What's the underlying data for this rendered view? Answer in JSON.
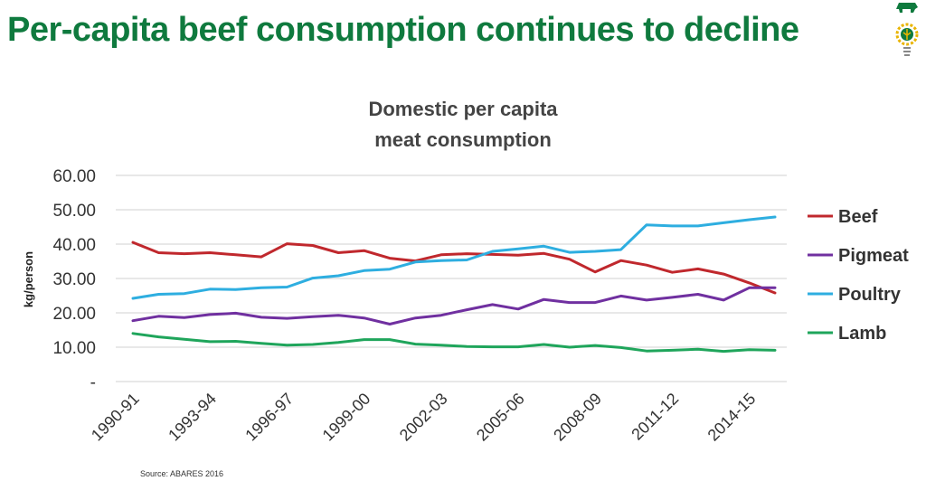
{
  "slide": {
    "title": "Per-capita beef consumption continues to decline",
    "source": "Source: ABARES 2016",
    "logo_icon": "cattle-and-wheat-gear-logo-icon"
  },
  "chart_data": {
    "type": "line",
    "title": "Domestic per capita meat consumption",
    "ylabel": "kg/person",
    "xlabel": "",
    "ylim": [
      0,
      60
    ],
    "yticks": [
      "-",
      "10.00",
      "20.00",
      "30.00",
      "40.00",
      "50.00",
      "60.00"
    ],
    "grid": true,
    "legend_position": "right",
    "x": [
      "1990-91",
      "1991-92",
      "1992-93",
      "1993-94",
      "1994-95",
      "1995-96",
      "1996-97",
      "1997-98",
      "1998-99",
      "1999-00",
      "2000-01",
      "2001-02",
      "2002-03",
      "2003-04",
      "2004-05",
      "2005-06",
      "2006-07",
      "2007-08",
      "2008-09",
      "2009-10",
      "2010-11",
      "2011-12",
      "2012-13",
      "2013-14",
      "2014-15",
      "2015-16"
    ],
    "xtick_labels": [
      "1990-91",
      "1993-94",
      "1996-97",
      "1999-00",
      "2002-03",
      "2005-06",
      "2008-09",
      "2011-12",
      "2014-15"
    ],
    "series": [
      {
        "name": "Beef",
        "color": "#c0282d",
        "values": [
          40.5,
          37.5,
          37.2,
          37.5,
          36.9,
          36.3,
          40.1,
          39.6,
          37.5,
          38.1,
          35.9,
          35.1,
          36.9,
          37.2,
          37.0,
          36.8,
          37.3,
          35.6,
          31.9,
          35.2,
          33.9,
          31.8,
          32.8,
          31.3,
          28.7,
          25.8
        ]
      },
      {
        "name": "Pigmeat",
        "color": "#7030a0",
        "values": [
          17.7,
          19.0,
          18.6,
          19.5,
          19.9,
          18.7,
          18.4,
          18.9,
          19.3,
          18.5,
          16.7,
          18.5,
          19.3,
          20.9,
          22.4,
          21.1,
          23.9,
          23.0,
          23.0,
          24.9,
          23.7,
          24.5,
          25.4,
          23.7,
          27.3,
          27.3
        ]
      },
      {
        "name": "Poultry",
        "color": "#2eaee0",
        "values": [
          24.2,
          25.4,
          25.6,
          26.9,
          26.8,
          27.3,
          27.5,
          30.1,
          30.8,
          32.3,
          32.7,
          34.8,
          35.2,
          35.4,
          37.9,
          38.6,
          39.4,
          37.6,
          37.9,
          38.4,
          45.6,
          45.3,
          45.3,
          46.2,
          47.1,
          47.9
        ]
      },
      {
        "name": "Lamb",
        "color": "#1fa55b",
        "values": [
          14.0,
          13.0,
          12.3,
          11.6,
          11.7,
          11.1,
          10.6,
          10.8,
          11.4,
          12.2,
          12.2,
          10.9,
          10.6,
          10.2,
          10.1,
          10.1,
          10.8,
          10.0,
          10.5,
          9.9,
          8.9,
          9.1,
          9.4,
          8.8,
          9.3,
          9.1
        ]
      }
    ]
  }
}
